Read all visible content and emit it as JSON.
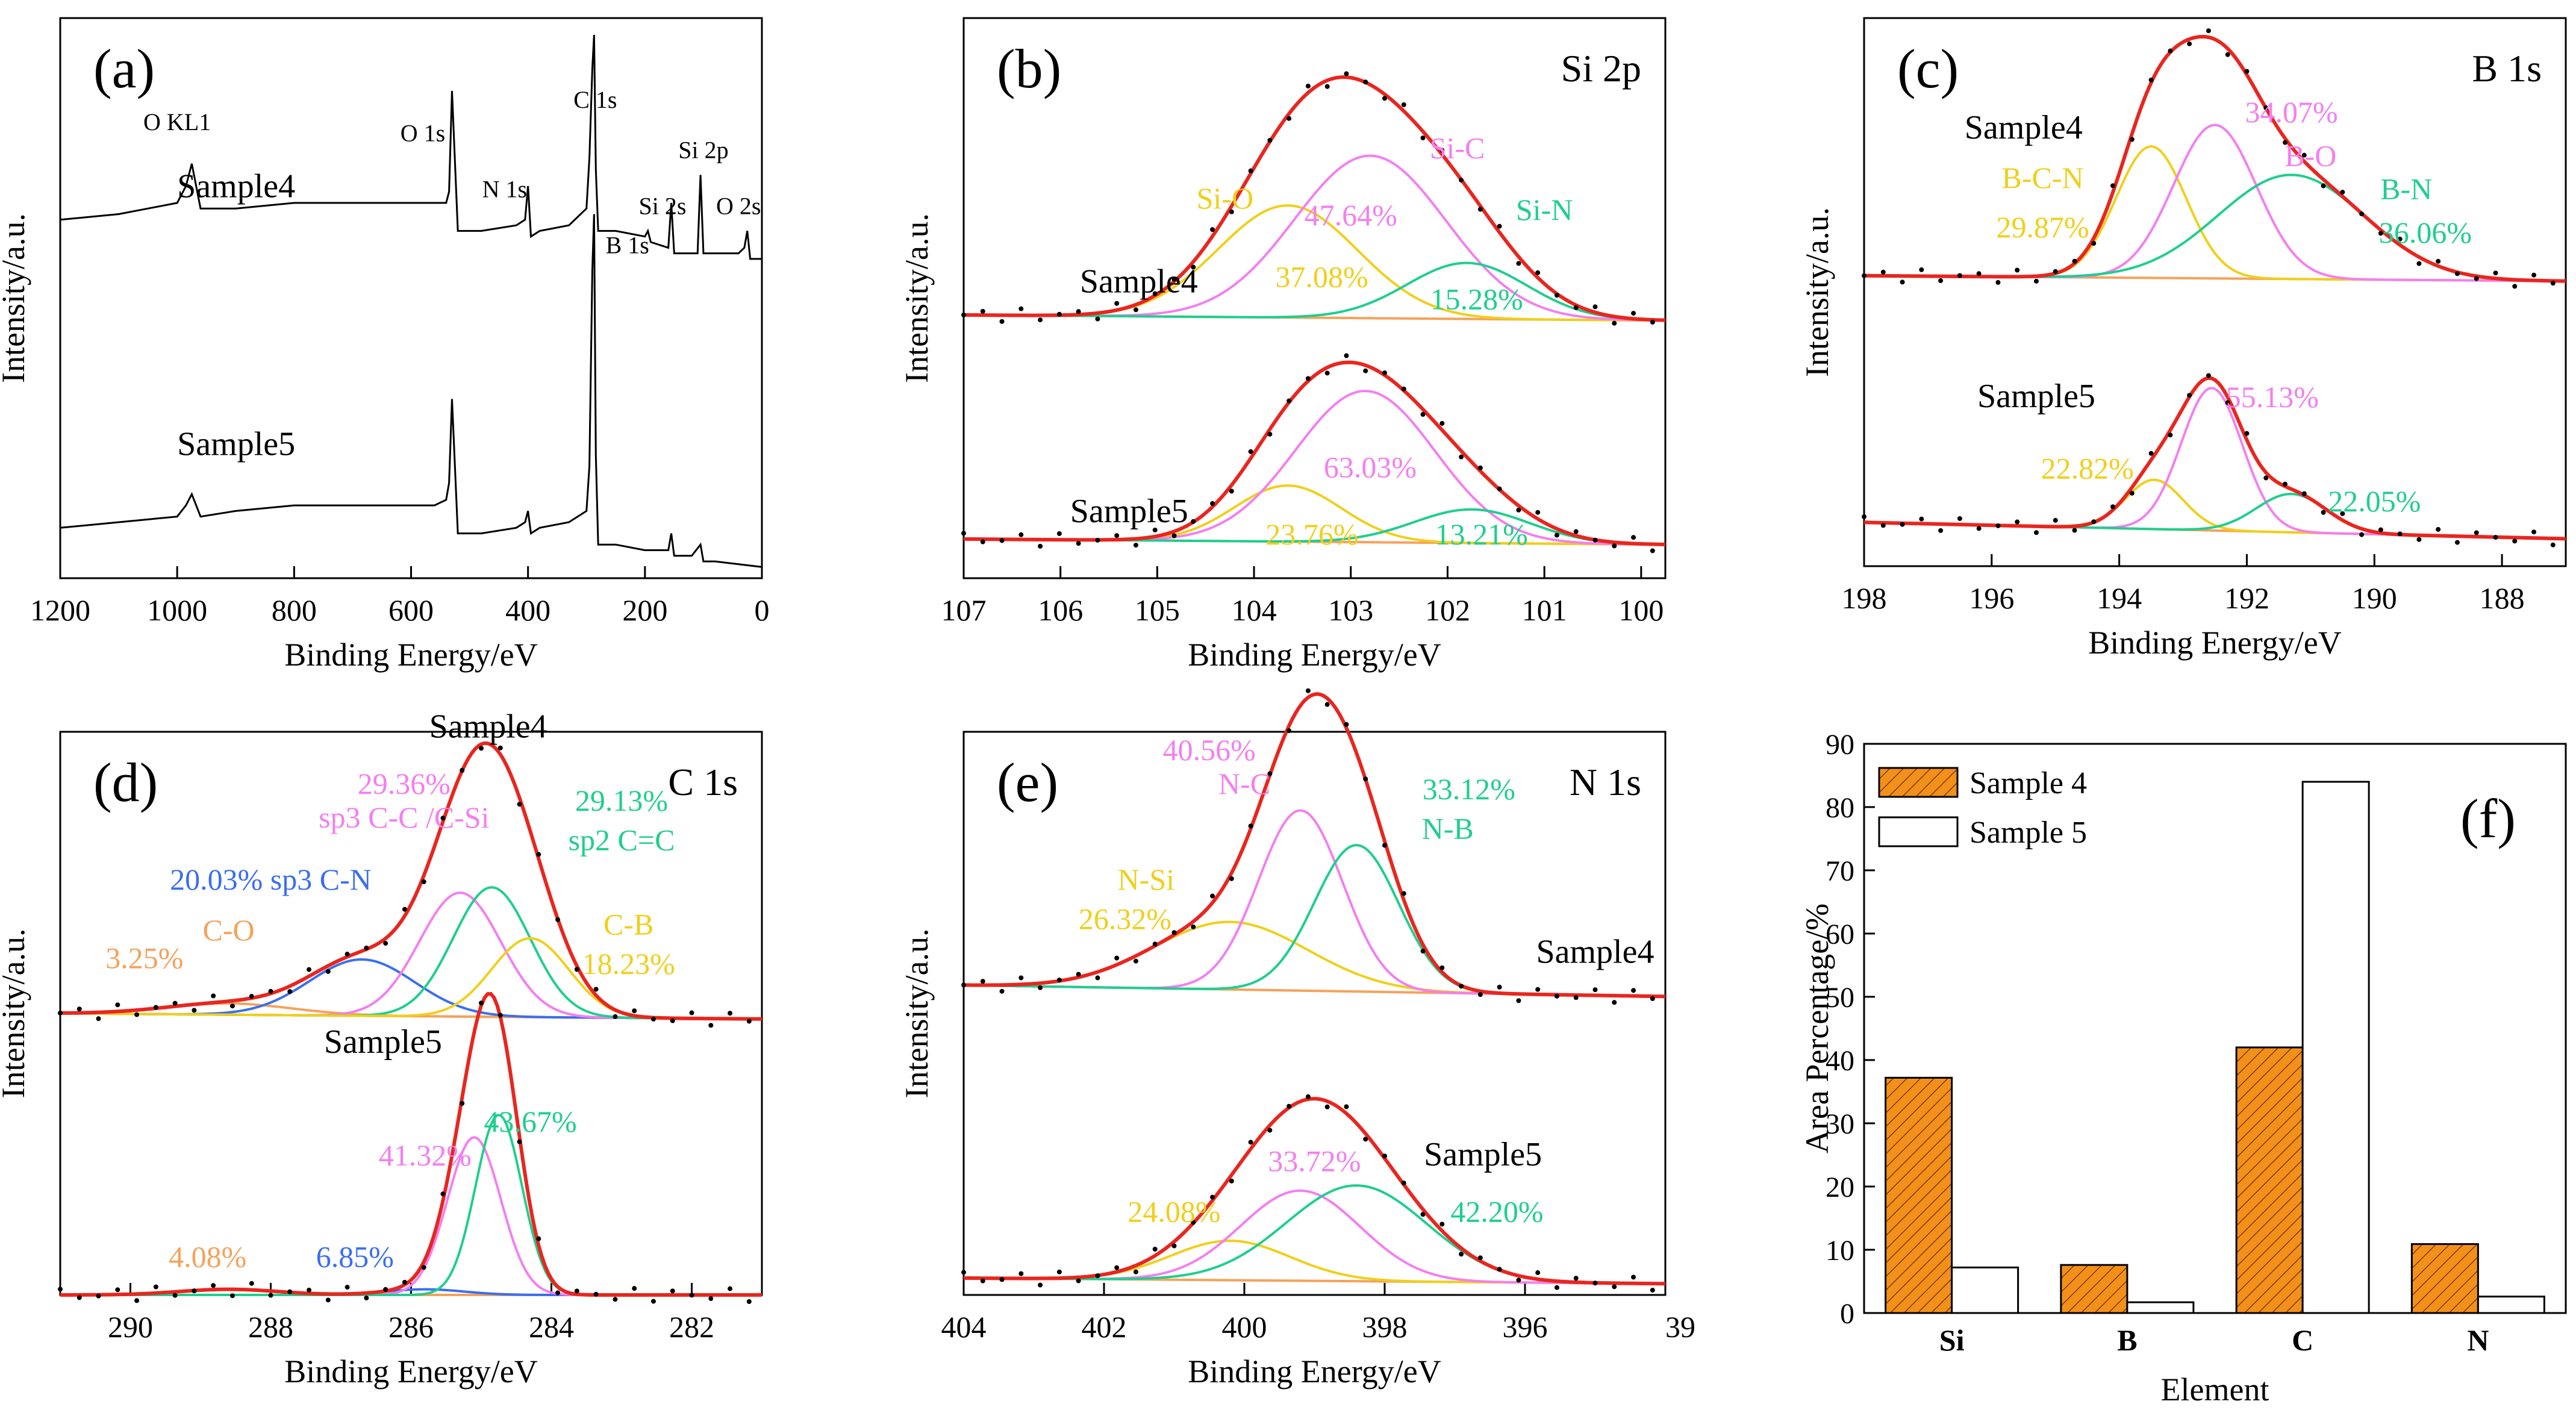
{
  "colors": {
    "envelope": "#e8261f",
    "sio": "#f0cf1a",
    "sic": "#f47ef0",
    "sin": "#1fce8e",
    "bg": "#f5a25a",
    "cn": "#3a6ef0",
    "co": "#f5a25a",
    "dots": "#000000",
    "bar4": "#f39019",
    "bar5": "#ffffff"
  },
  "chart_data": [
    {
      "id": "a",
      "type": "line",
      "panel_label": "(a)",
      "xlabel": "Binding Energy/eV",
      "ylabel": "Intensity/a.u.",
      "xlim": [
        1200,
        0
      ],
      "ylim": [
        0,
        100
      ],
      "xticks": [
        1200,
        1000,
        800,
        600,
        400,
        200,
        0
      ],
      "series": [
        {
          "name": "Sample4",
          "baseline": 62,
          "x": [
            1200,
            1100,
            1050,
            1000,
            985,
            975,
            960,
            900,
            800,
            700,
            620,
            560,
            540,
            535,
            530,
            520,
            480,
            420,
            405,
            400,
            395,
            380,
            330,
            300,
            295,
            290,
            287,
            284,
            280,
            250,
            200,
            195,
            190,
            160,
            155,
            150,
            120,
            110,
            105,
            100,
            80,
            40,
            30,
            25,
            20,
            0
          ],
          "y": [
            64,
            65,
            66,
            67,
            70,
            74,
            66,
            66,
            67,
            67,
            67,
            67,
            67,
            69,
            87,
            62,
            62,
            63,
            64,
            70,
            61,
            62,
            63,
            66,
            75,
            91,
            97,
            73,
            62,
            62,
            61,
            62,
            60,
            59,
            67,
            58,
            58,
            58,
            72,
            58,
            58,
            58,
            59,
            62,
            57,
            57
          ]
        },
        {
          "name": "Sample5",
          "baseline": 8,
          "x": [
            1200,
            1100,
            1000,
            985,
            975,
            960,
            900,
            800,
            700,
            620,
            560,
            540,
            535,
            530,
            520,
            480,
            420,
            405,
            400,
            395,
            380,
            330,
            300,
            295,
            290,
            287,
            284,
            280,
            250,
            200,
            160,
            155,
            150,
            120,
            105,
            100,
            80,
            0
          ],
          "y": [
            9,
            10,
            11,
            13,
            15,
            11,
            12,
            13,
            13,
            13,
            13,
            14,
            17,
            32,
            8,
            8,
            9,
            10,
            12,
            8,
            9,
            10,
            12,
            20,
            55,
            65,
            22,
            6,
            6,
            5,
            5,
            8,
            4,
            4,
            6,
            3,
            3,
            2
          ]
        }
      ],
      "annotations": [
        {
          "text": "O KL1",
          "x": 1000,
          "y": 80
        },
        {
          "text": "O 1s",
          "x": 580,
          "y": 78
        },
        {
          "text": "N 1s",
          "x": 440,
          "y": 68
        },
        {
          "text": "C 1s",
          "x": 285,
          "y": 84
        },
        {
          "text": "B 1s",
          "x": 230,
          "y": 58
        },
        {
          "text": "Si 2s",
          "x": 170,
          "y": 65
        },
        {
          "text": "Si 2p",
          "x": 100,
          "y": 75
        },
        {
          "text": "O 2s",
          "x": 40,
          "y": 65
        }
      ],
      "series_labels": [
        {
          "text": "Sample4",
          "x": 1000,
          "y": 68
        },
        {
          "text": "Sample5",
          "x": 1000,
          "y": 22
        }
      ]
    },
    {
      "id": "b",
      "type": "line",
      "panel_label": "(b)",
      "title": "Si 2p",
      "xlabel": "Binding Energy/eV",
      "ylabel": "Intensity/a.u.",
      "xlim": [
        107,
        99.75
      ],
      "ylim": [
        0,
        100
      ],
      "xticks": [
        107,
        106,
        105,
        104,
        103,
        102,
        101,
        100
      ],
      "samples": [
        {
          "name": "Sample4",
          "baseline": 47,
          "bg_end": 46,
          "peaks": [
            {
              "label": "Si-O",
              "pct": "37.08%",
              "center": 103.65,
              "height": 20,
              "sigma": 0.72,
              "color_key": "sio"
            },
            {
              "label": "Si-C",
              "pct": "47.64%",
              "center": 102.8,
              "height": 29,
              "sigma": 0.78,
              "color_key": "sic"
            },
            {
              "label": "Si-N",
              "pct": "15.28%",
              "center": 101.8,
              "height": 10,
              "sigma": 0.62,
              "color_key": "sin"
            }
          ]
        },
        {
          "name": "Sample5",
          "baseline": 7,
          "bg_end": 6,
          "peaks": [
            {
              "label": "",
              "pct": "23.76%",
              "center": 103.65,
              "height": 10,
              "sigma": 0.55,
              "color_key": "sio"
            },
            {
              "label": "",
              "pct": "63.03%",
              "center": 102.85,
              "height": 27,
              "sigma": 0.72,
              "color_key": "sic"
            },
            {
              "label": "",
              "pct": "13.21%",
              "center": 101.75,
              "height": 6,
              "sigma": 0.6,
              "color_key": "sin"
            }
          ]
        }
      ],
      "annotations": [
        {
          "text": "Si-O",
          "x": 104.3,
          "y": 66,
          "color_key": "sio"
        },
        {
          "text": "37.08%",
          "x": 103.3,
          "y": 52,
          "color_key": "sio"
        },
        {
          "text": "Si-C",
          "x": 101.9,
          "y": 75,
          "color_key": "sic"
        },
        {
          "text": "47.64%",
          "x": 103.0,
          "y": 63,
          "color_key": "sic"
        },
        {
          "text": "Si-N",
          "x": 101.0,
          "y": 64,
          "color_key": "sin"
        },
        {
          "text": "15.28%",
          "x": 101.7,
          "y": 48,
          "color_key": "sin"
        },
        {
          "text": "63.03%",
          "x": 102.8,
          "y": 18,
          "color_key": "sic"
        },
        {
          "text": "23.76%",
          "x": 103.4,
          "y": 6,
          "color_key": "sio"
        },
        {
          "text": "13.21%",
          "x": 101.65,
          "y": 6,
          "color_key": "sin"
        }
      ],
      "series_labels": [
        {
          "text": "Sample4",
          "x": 105.8,
          "y": 51
        },
        {
          "text": "Sample5",
          "x": 105.9,
          "y": 10
        }
      ]
    },
    {
      "id": "c",
      "type": "line",
      "panel_label": "(c)",
      "title": "B 1s",
      "xlabel": "Binding Energy/eV",
      "ylabel": "Intensity/a.u.",
      "xlim": [
        198,
        187
      ],
      "ylim": [
        0,
        100
      ],
      "xticks": [
        198,
        196,
        194,
        192,
        190,
        188
      ],
      "samples": [
        {
          "name": "Sample4",
          "baseline": 53,
          "bg_end": 52,
          "peaks": [
            {
              "label": "B-C-N",
              "pct": "29.87%",
              "center": 193.5,
              "height": 24,
              "sigma": 0.55,
              "color_key": "sio"
            },
            {
              "label": "B-O",
              "pct": "34.07%",
              "center": 192.5,
              "height": 28,
              "sigma": 0.65,
              "color_key": "sic"
            },
            {
              "label": "B-N",
              "pct": "36.06%",
              "center": 191.3,
              "height": 19,
              "sigma": 1.15,
              "color_key": "sin"
            }
          ]
        },
        {
          "name": "Sample5",
          "baseline": 8,
          "bg_end": 5,
          "peaks": [
            {
              "label": "",
              "pct": "22.82%",
              "center": 193.45,
              "height": 9,
              "sigma": 0.45,
              "color_key": "sio"
            },
            {
              "label": "",
              "pct": "55.13%",
              "center": 192.55,
              "height": 26,
              "sigma": 0.48,
              "color_key": "sic"
            },
            {
              "label": "",
              "pct": "22.05%",
              "center": 191.3,
              "height": 7,
              "sigma": 0.55,
              "color_key": "sin"
            }
          ]
        }
      ],
      "annotations": [
        {
          "text": "Sample4",
          "x": 195.5,
          "y": 78,
          "color_key": "dots"
        },
        {
          "text": "B-C-N",
          "x": 195.2,
          "y": 69,
          "color_key": "sio"
        },
        {
          "text": "29.87%",
          "x": 195.2,
          "y": 60,
          "color_key": "sio"
        },
        {
          "text": "34.07%",
          "x": 191.3,
          "y": 81,
          "color_key": "sic"
        },
        {
          "text": "B-O",
          "x": 191.0,
          "y": 73,
          "color_key": "sic"
        },
        {
          "text": "B-N",
          "x": 189.5,
          "y": 67,
          "color_key": "sin"
        },
        {
          "text": "36.06%",
          "x": 189.2,
          "y": 59,
          "color_key": "sin"
        },
        {
          "text": "Sample5",
          "x": 195.3,
          "y": 29,
          "color_key": "dots"
        },
        {
          "text": "55.13%",
          "x": 191.6,
          "y": 29,
          "color_key": "sic"
        },
        {
          "text": "22.82%",
          "x": 194.5,
          "y": 16,
          "color_key": "sio"
        },
        {
          "text": "22.05%",
          "x": 190.0,
          "y": 10,
          "color_key": "sin"
        }
      ]
    },
    {
      "id": "d",
      "type": "line",
      "panel_label": "(d)",
      "title": "C 1s",
      "xlabel": "Binding Energy/eV",
      "ylabel": "Intensity/a.u.",
      "xlim": [
        291,
        281
      ],
      "ylim": [
        0,
        100
      ],
      "xticks": [
        290,
        288,
        286,
        284,
        282
      ],
      "samples": [
        {
          "name": "Sample4",
          "baseline": 50,
          "bg_end": 49,
          "peaks": [
            {
              "label": "C-O",
              "pct": "3.25%",
              "center": 288.6,
              "height": 2,
              "sigma": 0.9,
              "color_key": "co"
            },
            {
              "label": "sp3 C-N",
              "pct": "20.03%",
              "center": 286.7,
              "height": 10,
              "sigma": 0.75,
              "color_key": "cn"
            },
            {
              "label": "sp3 C-C /C-Si",
              "pct": "29.36%",
              "center": 285.3,
              "height": 22,
              "sigma": 0.58,
              "color_key": "sic"
            },
            {
              "label": "sp2 C=C",
              "pct": "29.13%",
              "center": 284.85,
              "height": 23,
              "sigma": 0.55,
              "color_key": "sin"
            },
            {
              "label": "C-B",
              "pct": "18.23%",
              "center": 284.3,
              "height": 14,
              "sigma": 0.55,
              "color_key": "sio"
            }
          ]
        },
        {
          "name": "Sample5",
          "baseline": 0,
          "bg_end": 0,
          "peaks": [
            {
              "label": "",
              "pct": "4.08%",
              "center": 288.6,
              "height": 1,
              "sigma": 0.7,
              "color_key": "co"
            },
            {
              "label": "",
              "pct": "6.85%",
              "center": 285.8,
              "height": 1,
              "sigma": 0.55,
              "color_key": "cn"
            },
            {
              "label": "",
              "pct": "41.32%",
              "center": 285.1,
              "height": 28,
              "sigma": 0.38,
              "color_key": "sic"
            },
            {
              "label": "",
              "pct": "43.67%",
              "center": 284.75,
              "height": 32,
              "sigma": 0.33,
              "color_key": "sin"
            }
          ]
        }
      ],
      "annotations": [
        {
          "text": "Sample4",
          "x": 284.9,
          "y": 99,
          "color_key": "dots"
        },
        {
          "text": "29.36%",
          "x": 286.1,
          "y": 89,
          "color_key": "sic"
        },
        {
          "text": "sp3 C-C /C-Si",
          "x": 286.1,
          "y": 83,
          "color_key": "sic"
        },
        {
          "text": "29.13%",
          "x": 283.0,
          "y": 86,
          "color_key": "sin"
        },
        {
          "text": "sp2 C=C",
          "x": 283.0,
          "y": 79,
          "color_key": "sin"
        },
        {
          "text": "20.03% sp3 C-N",
          "x": 288.0,
          "y": 72,
          "color_key": "cn"
        },
        {
          "text": "C-O",
          "x": 288.6,
          "y": 63,
          "color_key": "co"
        },
        {
          "text": "3.25%",
          "x": 289.8,
          "y": 58,
          "color_key": "co"
        },
        {
          "text": "C-B",
          "x": 282.9,
          "y": 64,
          "color_key": "sio"
        },
        {
          "text": "18.23%",
          "x": 282.9,
          "y": 57,
          "color_key": "sio"
        },
        {
          "text": "Sample5",
          "x": 286.4,
          "y": 43,
          "color_key": "dots"
        },
        {
          "text": "41.32%",
          "x": 285.8,
          "y": 23,
          "color_key": "sic"
        },
        {
          "text": "43.67%",
          "x": 284.3,
          "y": 29,
          "color_key": "sin"
        },
        {
          "text": "4.08%",
          "x": 288.9,
          "y": 5,
          "color_key": "co"
        },
        {
          "text": "6.85%",
          "x": 286.8,
          "y": 5,
          "color_key": "cn"
        }
      ]
    },
    {
      "id": "e",
      "type": "line",
      "panel_label": "(e)",
      "title": "N 1s",
      "xlabel": "Binding Energy/eV",
      "ylabel": "Intensity/a.u.",
      "xlim": [
        404,
        394
      ],
      "ylim": [
        0,
        100
      ],
      "xticks": [
        404,
        402,
        400,
        398,
        396,
        "39"
      ],
      "samples": [
        {
          "name": "Sample4",
          "baseline": 55,
          "bg_end": 53,
          "peaks": [
            {
              "label": "N-Si",
              "pct": "26.32%",
              "center": 400.2,
              "height": 12,
              "sigma": 1.1,
              "color_key": "sio"
            },
            {
              "label": "N-C",
              "pct": "40.56%",
              "center": 399.2,
              "height": 32,
              "sigma": 0.6,
              "color_key": "sic"
            },
            {
              "label": "N-B",
              "pct": "33.12%",
              "center": 398.4,
              "height": 26,
              "sigma": 0.6,
              "color_key": "sin"
            }
          ]
        },
        {
          "name": "Sample5",
          "baseline": 3,
          "bg_end": 2,
          "peaks": [
            {
              "label": "",
              "pct": "24.08%",
              "center": 400.2,
              "height": 7,
              "sigma": 0.85,
              "color_key": "sio"
            },
            {
              "label": "",
              "pct": "33.72%",
              "center": 399.2,
              "height": 16,
              "sigma": 0.85,
              "color_key": "sic"
            },
            {
              "label": "",
              "pct": "42.20%",
              "center": 398.4,
              "height": 17,
              "sigma": 1.0,
              "color_key": "sin"
            }
          ]
        }
      ],
      "annotations": [
        {
          "text": "40.56%",
          "x": 400.5,
          "y": 95,
          "color_key": "sic"
        },
        {
          "text": "N-C",
          "x": 400.0,
          "y": 89,
          "color_key": "sic"
        },
        {
          "text": "33.12%",
          "x": 396.8,
          "y": 88,
          "color_key": "sin"
        },
        {
          "text": "N-B",
          "x": 397.1,
          "y": 81,
          "color_key": "sin"
        },
        {
          "text": "N-Si",
          "x": 401.4,
          "y": 72,
          "color_key": "sio"
        },
        {
          "text": "26.32%",
          "x": 401.7,
          "y": 65,
          "color_key": "sio"
        },
        {
          "text": "Sample4",
          "x": 395.0,
          "y": 59,
          "color_key": "dots"
        },
        {
          "text": "Sample5",
          "x": 396.6,
          "y": 23,
          "color_key": "dots"
        },
        {
          "text": "33.72%",
          "x": 399.0,
          "y": 22,
          "color_key": "sic"
        },
        {
          "text": "24.08%",
          "x": 401.0,
          "y": 13,
          "color_key": "sio"
        },
        {
          "text": "42.20%",
          "x": 396.4,
          "y": 13,
          "color_key": "sin"
        }
      ]
    },
    {
      "id": "f",
      "type": "bar",
      "panel_label": "(f)",
      "xlabel": "Element",
      "ylabel": "Area Percentage/%",
      "ylim": [
        0,
        90
      ],
      "yticks": [
        0,
        10,
        20,
        30,
        40,
        50,
        60,
        70,
        80,
        90
      ],
      "categories": [
        "Si",
        "B",
        "C",
        "N"
      ],
      "series": [
        {
          "name": "Sample 4",
          "values": [
            37.2,
            7.6,
            42.0,
            10.9
          ],
          "color_key": "bar4",
          "hatch": true
        },
        {
          "name": "Sample 5",
          "values": [
            7.2,
            1.7,
            84.0,
            2.6
          ],
          "color_key": "bar5",
          "hatch": false
        }
      ]
    }
  ]
}
